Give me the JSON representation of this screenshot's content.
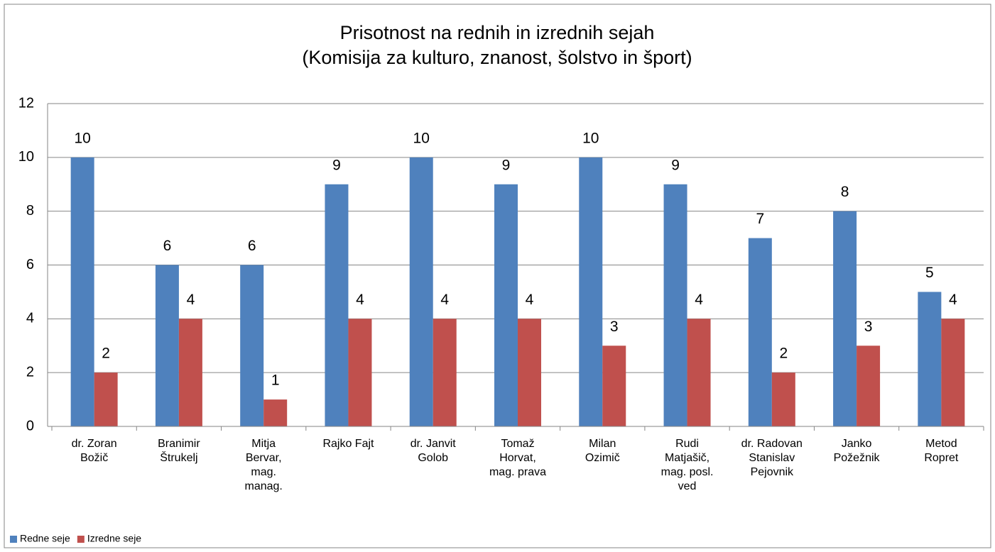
{
  "chart_data": {
    "type": "bar",
    "title": [
      "Prisotnost na rednih in izrednih sejah",
      "(Komisija za kulturo, znanost, šolstvo in šport)"
    ],
    "categories": [
      "dr. Zoran Božič",
      "Branimir Štrukelj",
      "Mitja Bervar, mag. manag.",
      "Rajko Fajt",
      "dr. Janvit Golob",
      "Tomaž Horvat, mag. prava",
      "Milan Ozimič",
      "Rudi Matjašič, mag. posl. ved",
      "dr. Radovan Stanislav Pejovnik",
      "Janko Požežnik",
      "Metod Ropret"
    ],
    "series": [
      {
        "name": "Redne seje",
        "color": "#4f81bd",
        "values": [
          10,
          6,
          6,
          9,
          10,
          9,
          10,
          9,
          7,
          8,
          5
        ]
      },
      {
        "name": "Izredne seje",
        "color": "#c0504d",
        "values": [
          2,
          4,
          1,
          4,
          4,
          4,
          3,
          4,
          2,
          3,
          4
        ]
      }
    ],
    "ylim": [
      0,
      12
    ],
    "yticks": [
      0,
      2,
      4,
      6,
      8,
      10,
      12
    ],
    "grid": true,
    "legend": "bottom-left"
  }
}
